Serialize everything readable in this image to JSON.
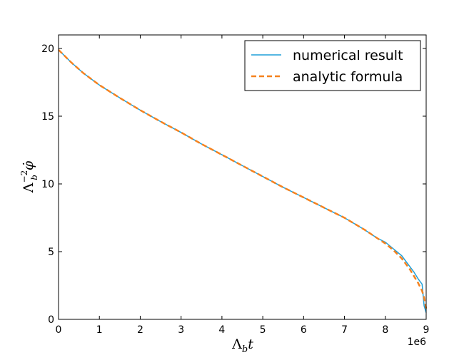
{
  "chart_data": {
    "type": "line",
    "xlabel": "Λ_b t",
    "ylabel": "Λ_b^{-2} φ̇",
    "x_offset_label": "1e6",
    "xlim": [
      0,
      9000000
    ],
    "ylim": [
      0,
      21
    ],
    "x_ticks": [
      0,
      1000000,
      2000000,
      3000000,
      4000000,
      5000000,
      6000000,
      7000000,
      8000000,
      9000000
    ],
    "x_tick_labels": [
      "0",
      "1",
      "2",
      "3",
      "4",
      "5",
      "6",
      "7",
      "8",
      "9"
    ],
    "y_ticks": [
      0,
      5,
      10,
      15,
      20
    ],
    "y_tick_labels": [
      "0",
      "5",
      "10",
      "15",
      "20"
    ],
    "grid": false,
    "legend_position": "top-right",
    "series": [
      {
        "name": "numerical result",
        "color": "#1f9fd8",
        "style": "solid",
        "x": [
          0,
          300000,
          600000,
          1000000,
          1500000,
          2000000,
          2500000,
          3000000,
          3500000,
          4000000,
          4500000,
          5000000,
          5500000,
          6000000,
          6500000,
          7000000,
          7500000,
          7800000,
          8000000,
          8200000,
          8400000,
          8500000,
          8600000,
          8700000,
          8800000,
          8850000,
          8900000,
          8950000,
          9000000
        ],
        "y": [
          19.9,
          19.0,
          18.2,
          17.3,
          16.35,
          15.45,
          14.6,
          13.8,
          12.95,
          12.15,
          11.35,
          10.55,
          9.75,
          9.0,
          8.25,
          7.5,
          6.6,
          6.0,
          5.7,
          5.2,
          4.7,
          4.3,
          3.9,
          3.5,
          3.0,
          2.8,
          2.6,
          1.0,
          0.5
        ]
      },
      {
        "name": "analytic formula",
        "color": "#f5821f",
        "style": "dashed",
        "x": [
          0,
          300000,
          600000,
          1000000,
          1500000,
          2000000,
          2500000,
          3000000,
          3500000,
          4000000,
          4500000,
          5000000,
          5500000,
          6000000,
          6500000,
          7000000,
          7500000,
          7800000,
          8000000,
          8200000,
          8400000,
          8500000,
          8600000,
          8700000,
          8800000,
          8900000,
          8950000,
          9000000
        ],
        "y": [
          19.9,
          19.0,
          18.2,
          17.3,
          16.35,
          15.45,
          14.6,
          13.8,
          12.95,
          12.15,
          11.35,
          10.55,
          9.75,
          9.0,
          8.25,
          7.5,
          6.6,
          6.0,
          5.6,
          5.1,
          4.5,
          4.1,
          3.7,
          3.2,
          2.7,
          2.1,
          1.6,
          0.8
        ]
      }
    ]
  }
}
